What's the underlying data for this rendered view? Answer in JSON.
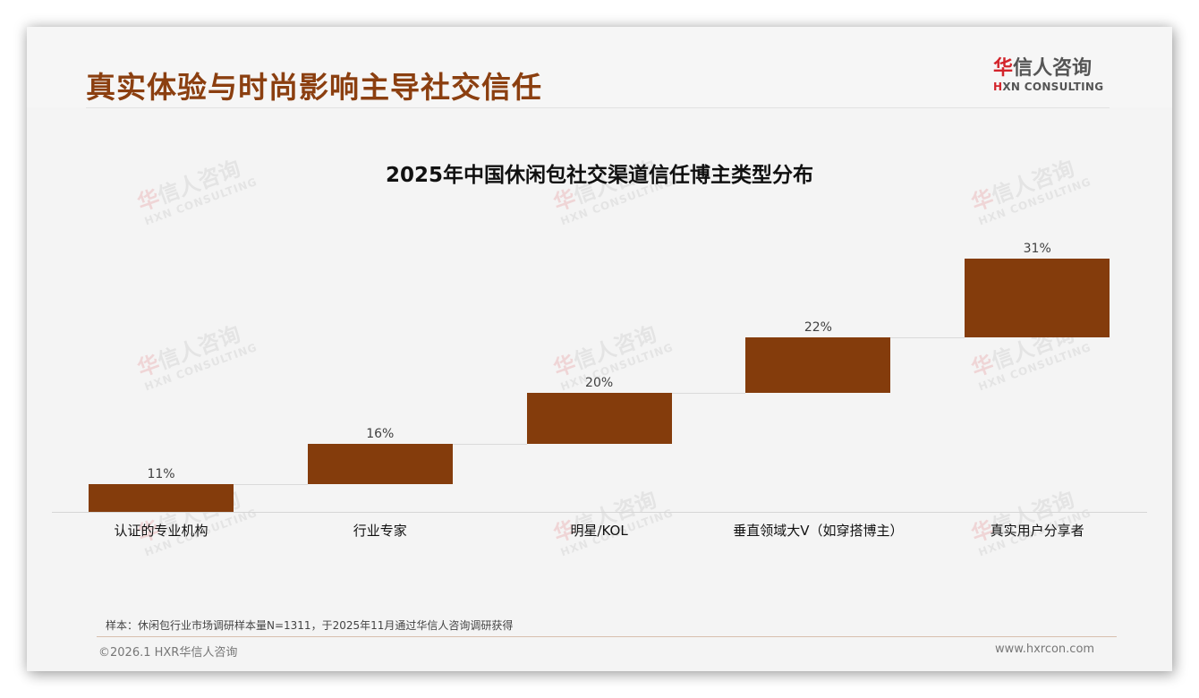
{
  "header": {
    "title": "真实体验与时尚影响主导社交信任",
    "logo": {
      "hua": "华",
      "rest_cn": "信人咨询",
      "h": "H",
      "rest_en": "XN CONSULTING"
    }
  },
  "watermark": {
    "hua": "华",
    "rest_cn": "信人咨询",
    "en": "HXN CONSULTING"
  },
  "colors": {
    "title": "#8b3f10",
    "bar": "#843c0c",
    "logo_accent": "#d3242b",
    "background": "#f4f4f4"
  },
  "chart_data": {
    "type": "bar",
    "subtype": "waterfall",
    "title": "2025年中国休闲包社交渠道信任博主类型分布",
    "categories": [
      "认证的专业机构",
      "行业专家",
      "明星/KOL",
      "垂直领域大V（如穿搭博主）",
      "真实用户分享者"
    ],
    "values": [
      11,
      16,
      20,
      22,
      31
    ],
    "labels": [
      "11%",
      "16%",
      "20%",
      "22%",
      "31%"
    ],
    "cumulative_start": [
      0,
      11,
      27,
      47,
      69
    ],
    "unit": "%",
    "xlabel": "",
    "ylabel": "",
    "ylim": [
      0,
      100
    ],
    "grid": false,
    "legend": null
  },
  "footer": {
    "note": "样本：休闲包行业市场调研样本量N=1311，于2025年11月通过华信人咨询调研获得",
    "copyright": "©2026.1 HXR华信人咨询",
    "website": "www.hxrcon.com"
  }
}
